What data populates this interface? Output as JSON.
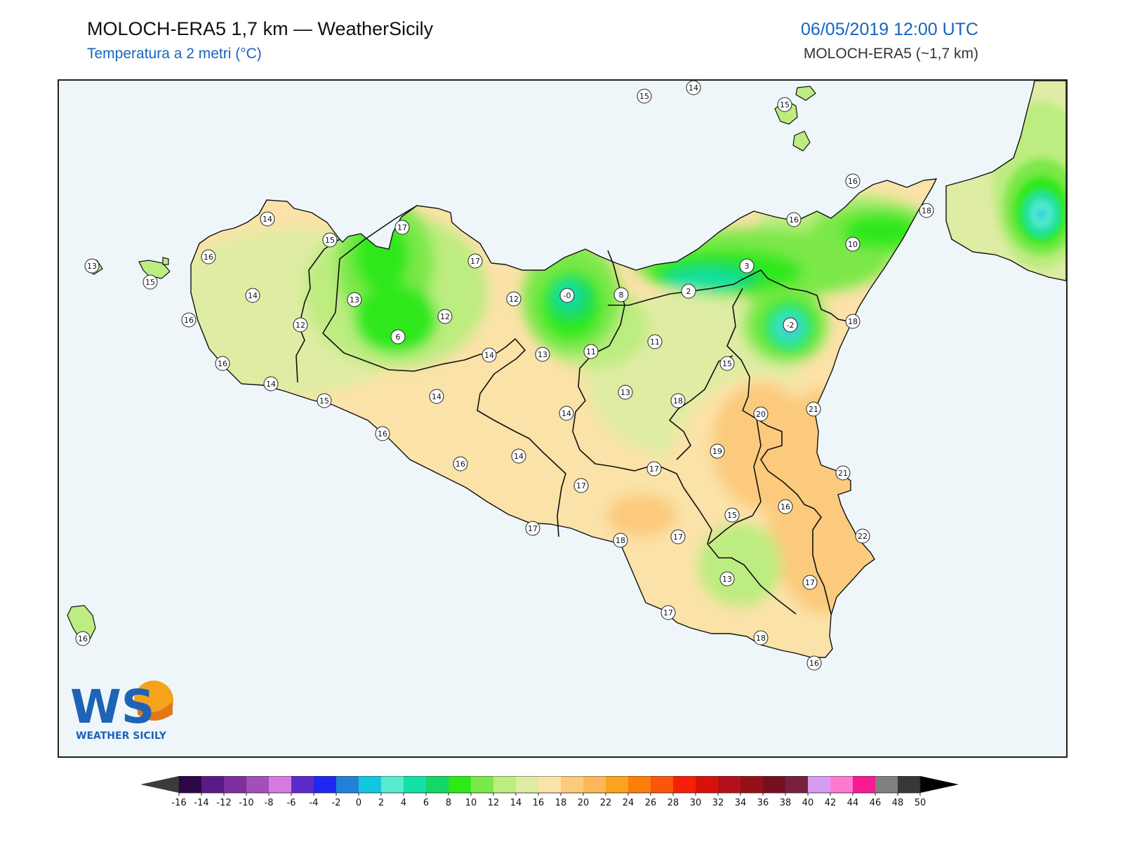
{
  "header": {
    "title": "MOLOCH-ERA5 1,7 km — WeatherSicily",
    "subtitle": "Temperatura a 2 metri (°C)",
    "datetime": "06/05/2019 12:00 UTC",
    "model": "MOLOCH-ERA5 (~1,7 km)"
  },
  "logo": {
    "letters": "WS",
    "name": "WEATHER SICILY"
  },
  "colors": {
    "sea": "#eef6fa",
    "frame": "#222222",
    "title": "#111111",
    "accent": "#1565c0"
  },
  "stations": [
    {
      "name": "15",
      "value": "15"
    },
    {
      "name": "14",
      "value": "14"
    },
    {
      "name": "15",
      "value": "15"
    },
    {
      "name": "16",
      "value": "16"
    },
    {
      "name": "18",
      "value": "18"
    },
    {
      "name": "16",
      "value": "16"
    },
    {
      "name": "10",
      "value": "10"
    },
    {
      "name": "14",
      "value": "14"
    },
    {
      "name": "17",
      "value": "17"
    },
    {
      "name": "15",
      "value": "15"
    },
    {
      "name": "16",
      "value": "16"
    },
    {
      "name": "13",
      "value": "13"
    },
    {
      "name": "15",
      "value": "15"
    },
    {
      "name": "14",
      "value": "14"
    },
    {
      "name": "17",
      "value": "17"
    },
    {
      "name": "3",
      "value": "3"
    },
    {
      "name": "2",
      "value": "2"
    },
    {
      "name": "-0",
      "value": "-0"
    },
    {
      "name": "8",
      "value": "8"
    },
    {
      "name": "12",
      "value": "12"
    },
    {
      "name": "13",
      "value": "13"
    },
    {
      "name": "12",
      "value": "12"
    },
    {
      "name": "16",
      "value": "16"
    },
    {
      "name": "12",
      "value": "12"
    },
    {
      "name": "-2",
      "value": "-2"
    },
    {
      "name": "18",
      "value": "18"
    },
    {
      "name": "6",
      "value": "6"
    },
    {
      "name": "11",
      "value": "11"
    },
    {
      "name": "14",
      "value": "14"
    },
    {
      "name": "13",
      "value": "13"
    },
    {
      "name": "11",
      "value": "11"
    },
    {
      "name": "15",
      "value": "15"
    },
    {
      "name": "16",
      "value": "16"
    },
    {
      "name": "14",
      "value": "14"
    },
    {
      "name": "15",
      "value": "15"
    },
    {
      "name": "13",
      "value": "13"
    },
    {
      "name": "14",
      "value": "14"
    },
    {
      "name": "18",
      "value": "18"
    },
    {
      "name": "21",
      "value": "21"
    },
    {
      "name": "20",
      "value": "20"
    },
    {
      "name": "14",
      "value": "14"
    },
    {
      "name": "16",
      "value": "16"
    },
    {
      "name": "19",
      "value": "19"
    },
    {
      "name": "14",
      "value": "14"
    },
    {
      "name": "17",
      "value": "17"
    },
    {
      "name": "16",
      "value": "16"
    },
    {
      "name": "21",
      "value": "21"
    },
    {
      "name": "17",
      "value": "17"
    },
    {
      "name": "16",
      "value": "16"
    },
    {
      "name": "15",
      "value": "15"
    },
    {
      "name": "17",
      "value": "17"
    },
    {
      "name": "18",
      "value": "18"
    },
    {
      "name": "17",
      "value": "17"
    },
    {
      "name": "22",
      "value": "22"
    },
    {
      "name": "13",
      "value": "13"
    },
    {
      "name": "17",
      "value": "17"
    },
    {
      "name": "17",
      "value": "17"
    },
    {
      "name": "16",
      "value": "16"
    },
    {
      "name": "18",
      "value": "18"
    },
    {
      "name": "16",
      "value": "16"
    }
  ],
  "colorbar": {
    "ticks": [
      "-16",
      "-14",
      "-12",
      "-10",
      "-8",
      "-6",
      "-4",
      "-2",
      "0",
      "2",
      "4",
      "6",
      "8",
      "10",
      "12",
      "14",
      "16",
      "18",
      "20",
      "22",
      "24",
      "26",
      "28",
      "30",
      "32",
      "34",
      "36",
      "38",
      "40",
      "42",
      "44",
      "46",
      "48",
      "50"
    ],
    "colors": [
      "#2c0846",
      "#5b1a86",
      "#7d2f9e",
      "#a24fb8",
      "#d57be0",
      "#5c2bc9",
      "#1f27f0",
      "#1f82d8",
      "#12c7e0",
      "#56ebd0",
      "#12e0a4",
      "#12d865",
      "#2ee81a",
      "#7ce84a",
      "#bdec80",
      "#dfeca3",
      "#fbe2a8",
      "#fbca7b",
      "#fbb75a",
      "#fba21f",
      "#fb7f0a",
      "#fb560a",
      "#f5200a",
      "#d8120a",
      "#b4101c",
      "#951018",
      "#751020",
      "#76223e",
      "#d69cf3",
      "#fd7ad1",
      "#f71a92",
      "#808080",
      "#383838"
    ],
    "under_color": "#3b3b3b",
    "over_color": "#000000"
  }
}
